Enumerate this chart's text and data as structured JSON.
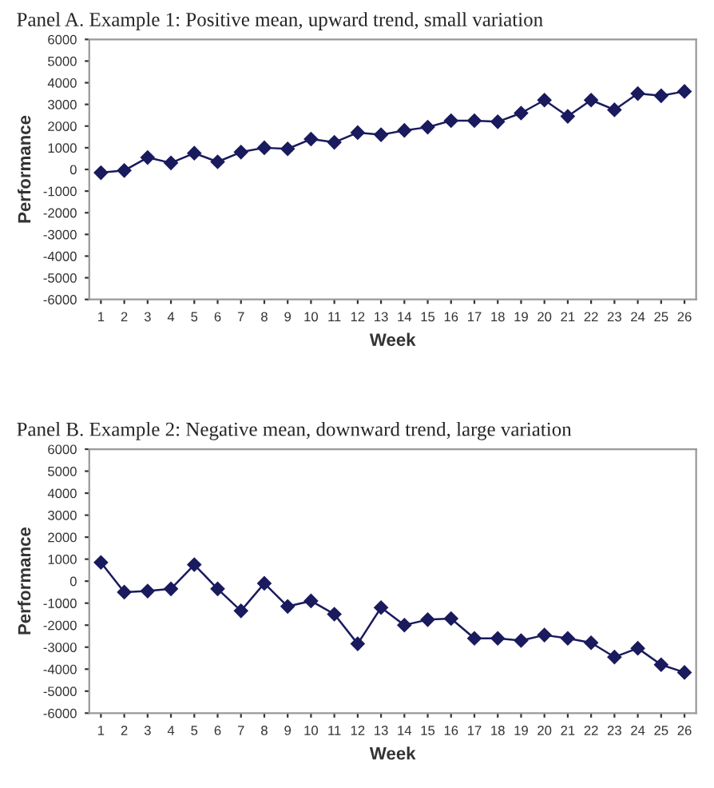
{
  "chart_data": [
    {
      "type": "line",
      "title": "Panel A. Example 1: Positive mean, upward trend, small variation",
      "xlabel": "Week",
      "ylabel": "Performance",
      "categories": [
        "1",
        "2",
        "3",
        "4",
        "5",
        "6",
        "7",
        "8",
        "9",
        "10",
        "11",
        "12",
        "13",
        "14",
        "15",
        "16",
        "17",
        "18",
        "19",
        "20",
        "21",
        "22",
        "23",
        "24",
        "25",
        "26"
      ],
      "series": [
        {
          "color": "#1a1a5e",
          "values": [
            -150,
            -50,
            550,
            300,
            750,
            350,
            800,
            1000,
            950,
            1400,
            1250,
            1700,
            1600,
            1800,
            1950,
            2250,
            2250,
            2200,
            2600,
            3200,
            2450,
            3200,
            2750,
            3500,
            3400,
            3600
          ]
        }
      ],
      "ylim": [
        -6000,
        6000
      ],
      "yticks": [
        -6000,
        -5000,
        -4000,
        -3000,
        -2000,
        -1000,
        0,
        1000,
        2000,
        3000,
        4000,
        5000,
        6000
      ],
      "grid": false,
      "legend": false,
      "marker": "diamond",
      "line_style": "solid"
    },
    {
      "type": "line",
      "title": "Panel B. Example 2: Negative mean, downward trend, large variation",
      "xlabel": "Week",
      "ylabel": "Performance",
      "categories": [
        "1",
        "2",
        "3",
        "4",
        "5",
        "6",
        "7",
        "8",
        "9",
        "10",
        "11",
        "12",
        "13",
        "14",
        "15",
        "16",
        "17",
        "18",
        "19",
        "20",
        "21",
        "22",
        "23",
        "24",
        "25",
        "26"
      ],
      "series": [
        {
          "color": "#1a1a5e",
          "values": [
            850,
            -500,
            -450,
            -350,
            750,
            -350,
            -1350,
            -100,
            -1150,
            -900,
            -1500,
            -2850,
            -1200,
            -2000,
            -1750,
            -1700,
            -2600,
            -2600,
            -2700,
            -2450,
            -2600,
            -2800,
            -3450,
            -3050,
            -3800,
            -4150
          ]
        }
      ],
      "ylim": [
        -6000,
        6000
      ],
      "yticks": [
        -6000,
        -5000,
        -4000,
        -3000,
        -2000,
        -1000,
        0,
        1000,
        2000,
        3000,
        4000,
        5000,
        6000
      ],
      "grid": false,
      "legend": false,
      "marker": "diamond",
      "line_style": "solid"
    }
  ]
}
